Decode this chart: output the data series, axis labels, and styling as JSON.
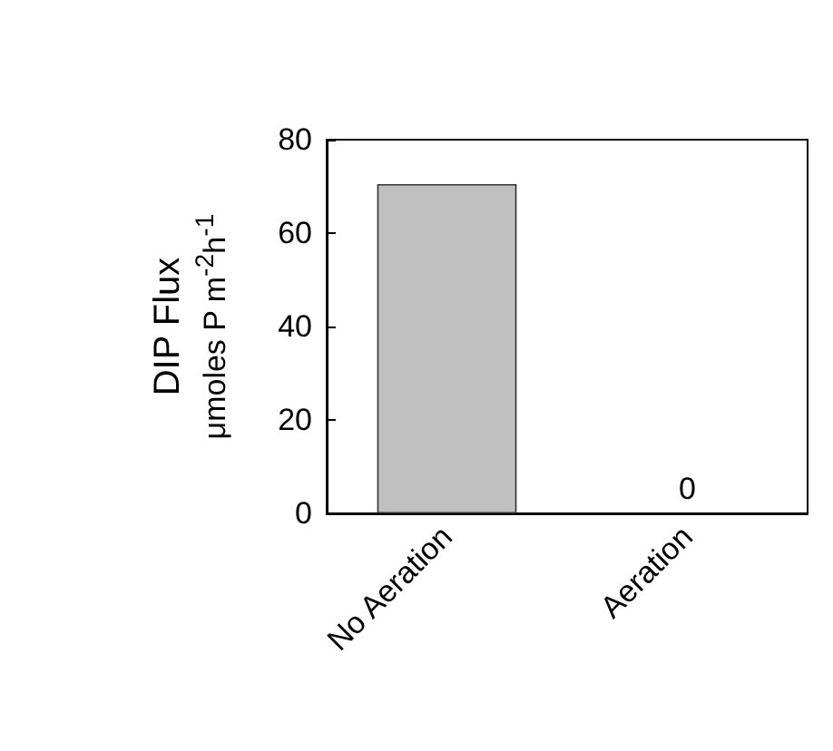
{
  "chart_data": {
    "type": "bar",
    "ylabel": "DIP Flux\nμmoles P m$^{-2}$h$^{-1}$",
    "categories": [
      "No Aeration",
      "Aeration"
    ],
    "values": [
      70.5,
      0
    ],
    "value_labels": [
      null,
      "0"
    ],
    "color": "#c0c0c0",
    "ylim": [
      0,
      80
    ],
    "yticks": [
      0,
      20,
      40,
      60,
      80
    ],
    "grid": false
  }
}
